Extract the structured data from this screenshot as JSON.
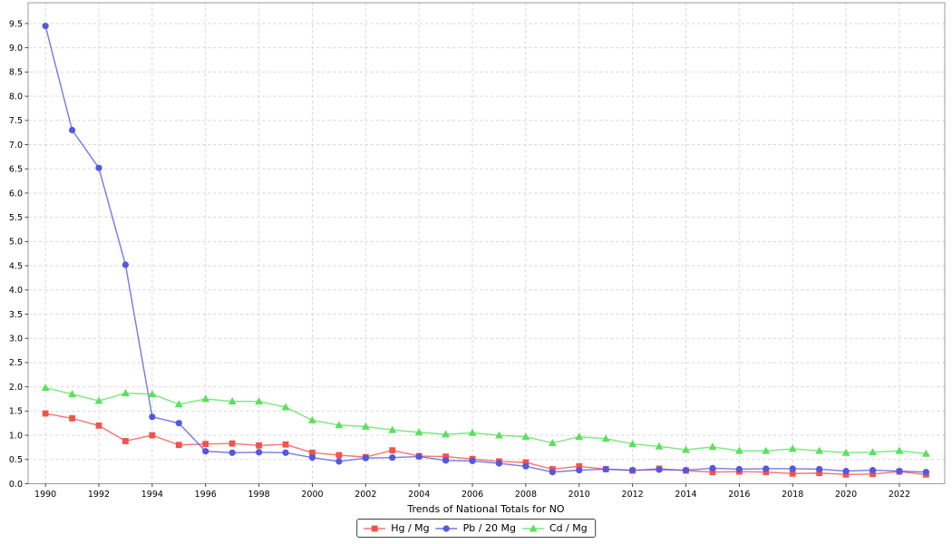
{
  "figure": {
    "background": "#ffffff",
    "grid_color": "#d9d9d9",
    "spine_color": "#9b9b9b"
  },
  "chart_data": {
    "type": "line",
    "xlabel": "Trends of National Totals for NO",
    "ylabel": "",
    "grid": true,
    "legend_position": "bottom-center",
    "xlim": [
      1989.35,
      2023.7
    ],
    "ylim": [
      0,
      9.93
    ],
    "xticks": [
      1990,
      1992,
      1994,
      1996,
      1998,
      2000,
      2002,
      2004,
      2006,
      2008,
      2010,
      2012,
      2014,
      2016,
      2018,
      2020,
      2022
    ],
    "yticks": [
      0.0,
      0.5,
      1.0,
      1.5,
      2.0,
      2.5,
      3.0,
      3.5,
      4.0,
      4.5,
      5.0,
      5.5,
      6.0,
      6.5,
      7.0,
      7.5,
      8.0,
      8.5,
      9.0,
      9.5
    ],
    "x": [
      1990,
      1991,
      1992,
      1993,
      1994,
      1995,
      1996,
      1997,
      1998,
      1999,
      2000,
      2001,
      2002,
      2003,
      2004,
      2005,
      2006,
      2007,
      2008,
      2009,
      2010,
      2011,
      2012,
      2013,
      2014,
      2015,
      2016,
      2017,
      2018,
      2019,
      2020,
      2021,
      2022,
      2023
    ],
    "series": [
      {
        "name": "Hg / Mg",
        "color": "#f3524d",
        "marker": "square",
        "values": [
          1.45,
          1.35,
          1.2,
          0.88,
          1.0,
          0.8,
          0.82,
          0.83,
          0.79,
          0.81,
          0.64,
          0.59,
          0.55,
          0.69,
          0.57,
          0.56,
          0.51,
          0.46,
          0.44,
          0.3,
          0.36,
          0.3,
          0.27,
          0.31,
          0.27,
          0.24,
          0.25,
          0.24,
          0.21,
          0.22,
          0.19,
          0.2,
          0.25,
          0.19
        ]
      },
      {
        "name": "Pb / 20 Mg",
        "color": "#5457e0",
        "marker": "circle",
        "values": [
          9.45,
          7.3,
          6.52,
          4.52,
          1.38,
          1.25,
          0.67,
          0.64,
          0.65,
          0.64,
          0.54,
          0.46,
          0.53,
          0.54,
          0.56,
          0.48,
          0.47,
          0.42,
          0.36,
          0.24,
          0.28,
          0.3,
          0.28,
          0.29,
          0.28,
          0.32,
          0.3,
          0.31,
          0.31,
          0.3,
          0.26,
          0.28,
          0.26,
          0.24
        ]
      },
      {
        "name": "Cd / Mg",
        "color": "#59e25c",
        "marker": "triangle",
        "values": [
          1.98,
          1.85,
          1.71,
          1.87,
          1.85,
          1.64,
          1.75,
          1.7,
          1.7,
          1.58,
          1.31,
          1.21,
          1.18,
          1.11,
          1.06,
          1.02,
          1.05,
          1.0,
          0.97,
          0.84,
          0.97,
          0.93,
          0.82,
          0.77,
          0.7,
          0.76,
          0.68,
          0.68,
          0.72,
          0.68,
          0.64,
          0.65,
          0.68,
          0.62
        ]
      }
    ]
  }
}
